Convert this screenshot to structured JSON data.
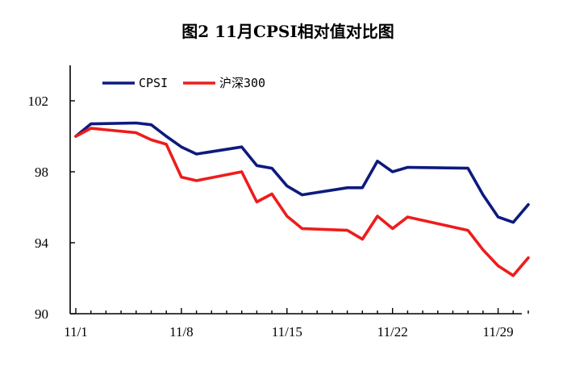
{
  "chart_data": {
    "type": "line",
    "title": "图2   11月CPSI相对值对比图",
    "xlabel": "",
    "ylabel": "",
    "x_start_day": 1,
    "x_tick_days": [
      1,
      8,
      15,
      22,
      29
    ],
    "x_tick_labels": [
      "11/1",
      "11/8",
      "11/15",
      "11/22",
      "11/29"
    ],
    "ylim": [
      90,
      104
    ],
    "y_ticks": [
      90,
      94,
      98,
      102
    ],
    "y_tick_labels": [
      "90",
      "94",
      "98",
      "102"
    ],
    "legend_position": "top-left",
    "grid": false,
    "series": [
      {
        "name": "CPSI",
        "color": "#0d1a7e",
        "points": [
          {
            "day": 1,
            "value": 100.0
          },
          {
            "day": 2,
            "value": 100.7
          },
          {
            "day": 5,
            "value": 100.75
          },
          {
            "day": 6,
            "value": 100.65
          },
          {
            "day": 7,
            "value": 100.0
          },
          {
            "day": 8,
            "value": 99.4
          },
          {
            "day": 9,
            "value": 99.0
          },
          {
            "day": 12,
            "value": 99.4
          },
          {
            "day": 13,
            "value": 98.35
          },
          {
            "day": 14,
            "value": 98.2
          },
          {
            "day": 15,
            "value": 97.2
          },
          {
            "day": 16,
            "value": 96.7
          },
          {
            "day": 19,
            "value": 97.1
          },
          {
            "day": 20,
            "value": 97.1
          },
          {
            "day": 21,
            "value": 98.6
          },
          {
            "day": 22,
            "value": 98.0
          },
          {
            "day": 23,
            "value": 98.25
          },
          {
            "day": 27,
            "value": 98.2
          },
          {
            "day": 28,
            "value": 96.7
          },
          {
            "day": 29,
            "value": 95.45
          },
          {
            "day": 30,
            "value": 95.15
          },
          {
            "day": 31,
            "value": 96.15
          }
        ]
      },
      {
        "name": "沪深300",
        "color": "#ee1c1c",
        "points": [
          {
            "day": 1,
            "value": 100.0
          },
          {
            "day": 2,
            "value": 100.45
          },
          {
            "day": 5,
            "value": 100.2
          },
          {
            "day": 6,
            "value": 99.8
          },
          {
            "day": 7,
            "value": 99.55
          },
          {
            "day": 8,
            "value": 97.7
          },
          {
            "day": 9,
            "value": 97.5
          },
          {
            "day": 12,
            "value": 98.0
          },
          {
            "day": 13,
            "value": 96.3
          },
          {
            "day": 14,
            "value": 96.75
          },
          {
            "day": 15,
            "value": 95.5
          },
          {
            "day": 16,
            "value": 94.8
          },
          {
            "day": 19,
            "value": 94.7
          },
          {
            "day": 20,
            "value": 94.2
          },
          {
            "day": 21,
            "value": 95.5
          },
          {
            "day": 22,
            "value": 94.8
          },
          {
            "day": 23,
            "value": 95.45
          },
          {
            "day": 27,
            "value": 94.7
          },
          {
            "day": 28,
            "value": 93.6
          },
          {
            "day": 29,
            "value": 92.7
          },
          {
            "day": 30,
            "value": 92.15
          },
          {
            "day": 31,
            "value": 93.15
          }
        ]
      }
    ]
  }
}
